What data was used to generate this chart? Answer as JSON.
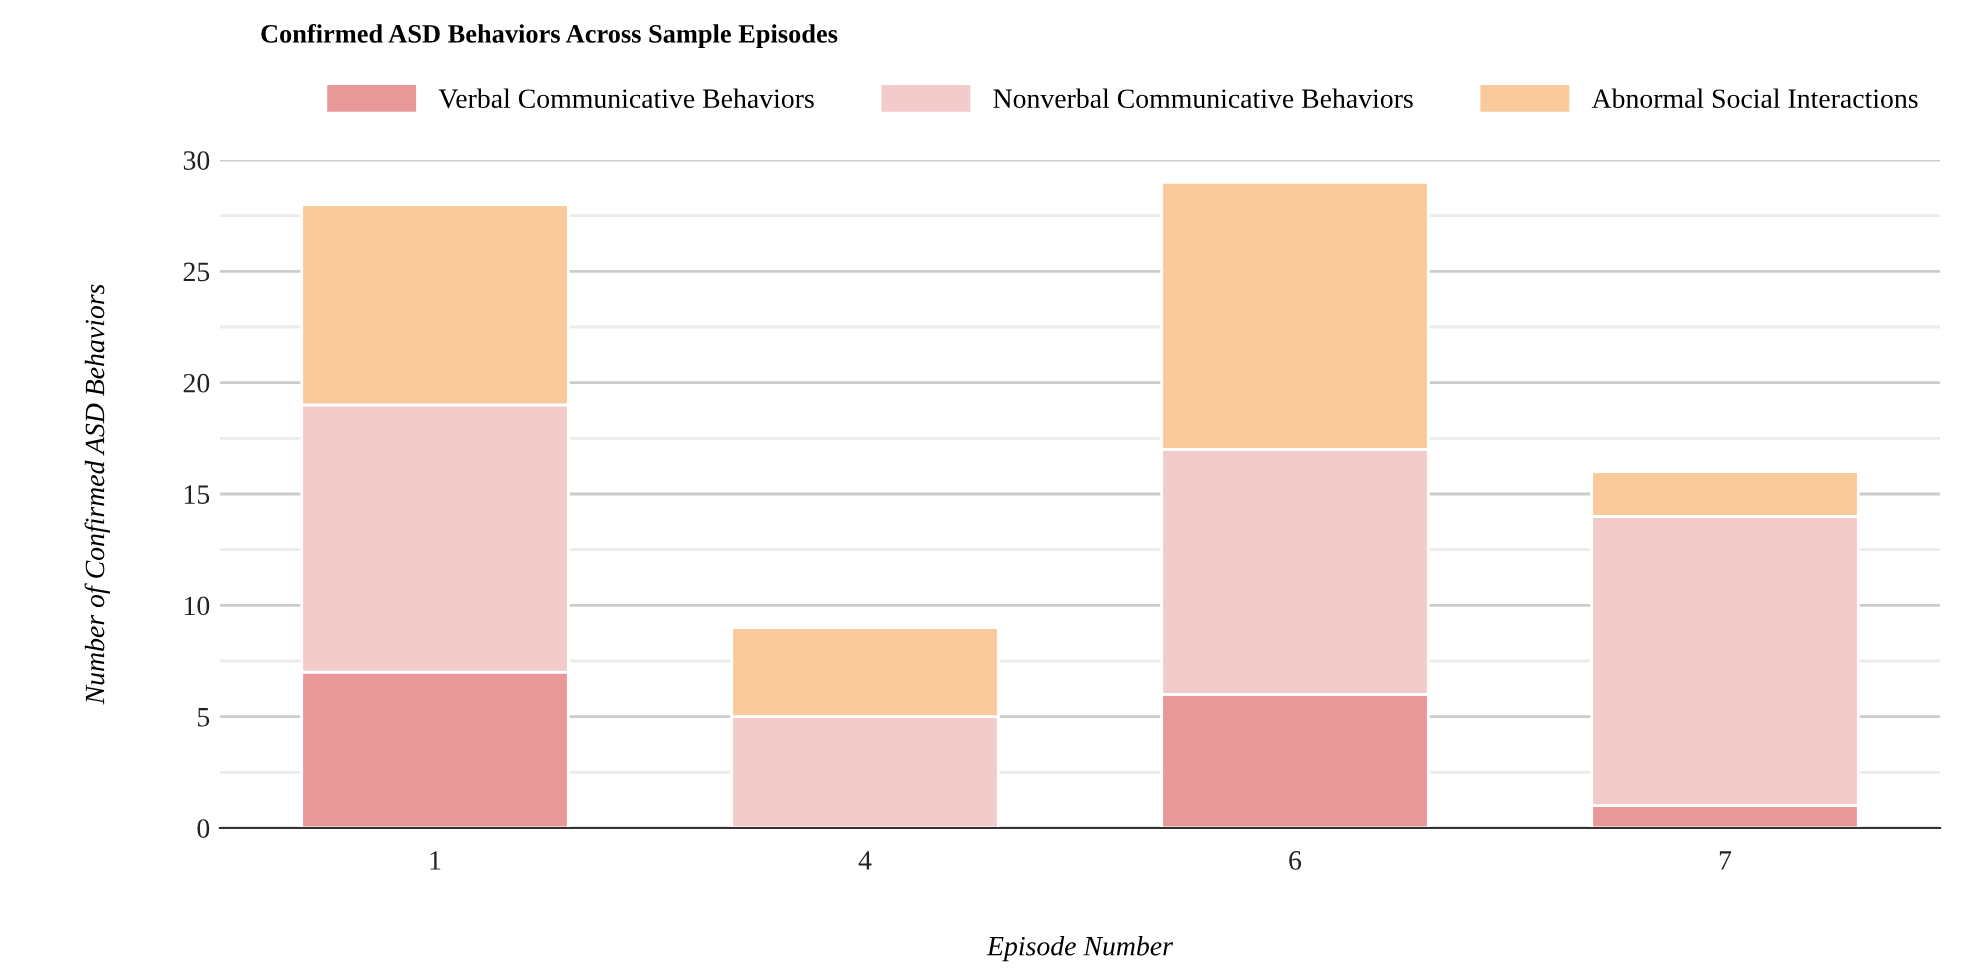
{
  "chart_data": {
    "type": "bar",
    "title": "Confirmed ASD Behaviors Across Sample Episodes",
    "xlabel": "Episode Number",
    "ylabel": "Number of Confirmed ASD Behaviors",
    "categories": [
      "1",
      "4",
      "6",
      "7"
    ],
    "stacked": true,
    "series": [
      {
        "name": "Verbal Communicative Behaviors",
        "color": "#e99899",
        "values": [
          7,
          0,
          6,
          1
        ]
      },
      {
        "name": "Nonverbal Communicative Behaviors",
        "color": "#f3cbcb",
        "values": [
          12,
          5,
          11,
          13
        ]
      },
      {
        "name": "Abnormal Social Interactions",
        "color": "#f8ca9c",
        "values": [
          9,
          4,
          12,
          2
        ]
      }
    ],
    "ylim": [
      0,
      30
    ],
    "yticks": [
      0,
      {
        "value": 2.5,
        "label": null
      },
      5,
      {
        "value": 7.5,
        "label": null
      },
      10,
      {
        "value": 12.5,
        "label": null
      },
      15,
      {
        "value": 17.5,
        "label": null
      },
      20,
      {
        "value": 22.5,
        "label": null
      },
      25,
      {
        "value": 27.5,
        "label": null
      },
      30
    ],
    "grid": "y",
    "legend": "top"
  }
}
